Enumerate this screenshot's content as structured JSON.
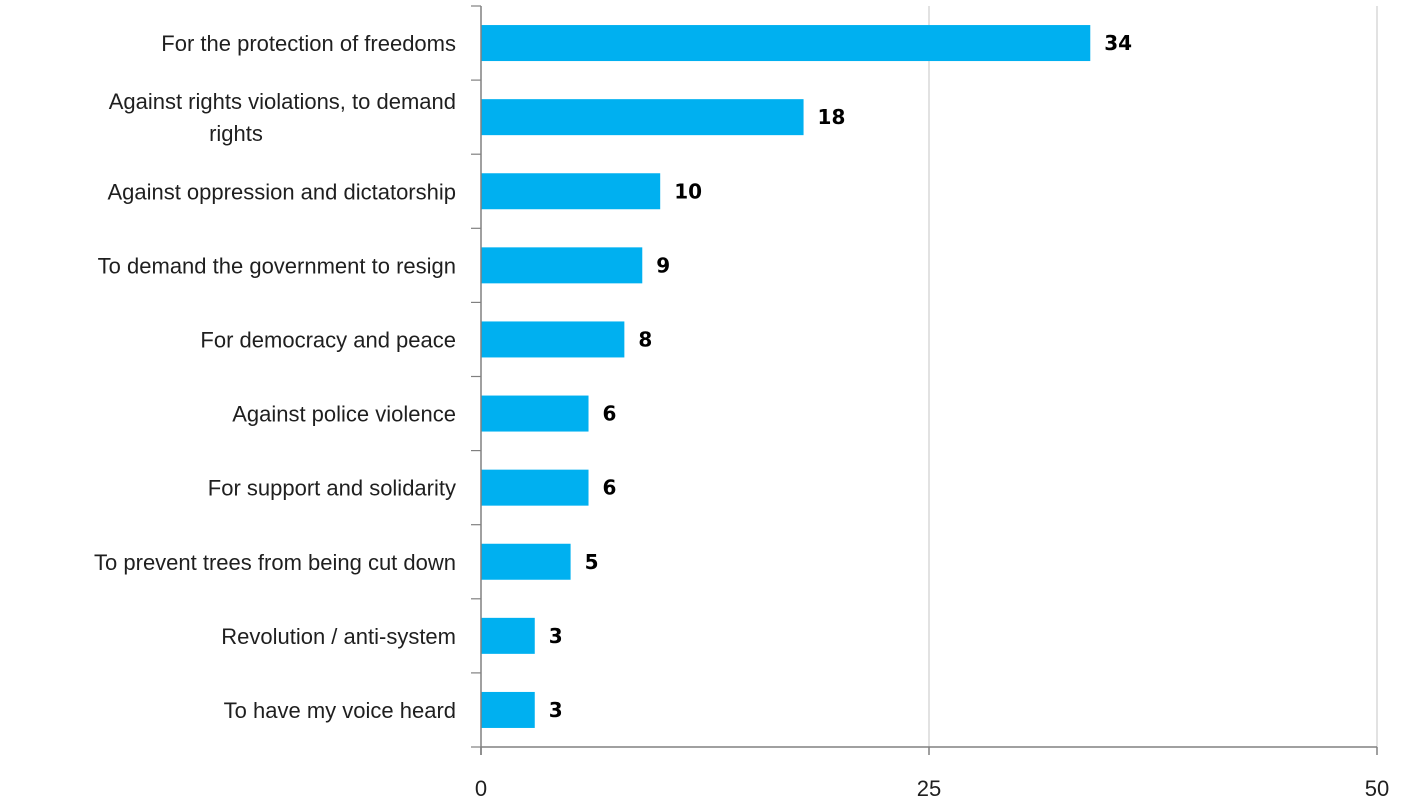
{
  "chart_data": {
    "type": "bar",
    "orientation": "horizontal",
    "categories": [
      "For the protection of freedoms",
      "Against rights violations, to demand rights",
      "Against oppression and dictatorship",
      "To demand the government to resign",
      "For democracy and peace",
      "Against police violence",
      "For support and solidarity",
      "To prevent trees from being cut down",
      "Revolution / anti-system",
      "To have my voice heard"
    ],
    "category_lines": [
      [
        "For the protection of freedoms"
      ],
      [
        "Against rights violations, to demand",
        "rights"
      ],
      [
        "Against oppression and dictatorship"
      ],
      [
        "To demand the government to resign"
      ],
      [
        "For democracy and peace"
      ],
      [
        "Against police violence"
      ],
      [
        "For support and solidarity"
      ],
      [
        "To prevent trees from being cut down"
      ],
      [
        "Revolution / anti-system"
      ],
      [
        "To have my voice heard"
      ]
    ],
    "values": [
      34,
      18,
      10,
      9,
      8,
      6,
      6,
      5,
      3,
      3
    ],
    "xlim": [
      0,
      50
    ],
    "xticks": [
      0,
      25,
      50
    ],
    "title": "",
    "xlabel": "",
    "ylabel": "",
    "grid": "vertical",
    "legend": "none",
    "colors": {
      "bar": "#00b0f0",
      "grid": "#d9d9d9",
      "axis": "#808080",
      "value_text": "#000000"
    }
  }
}
